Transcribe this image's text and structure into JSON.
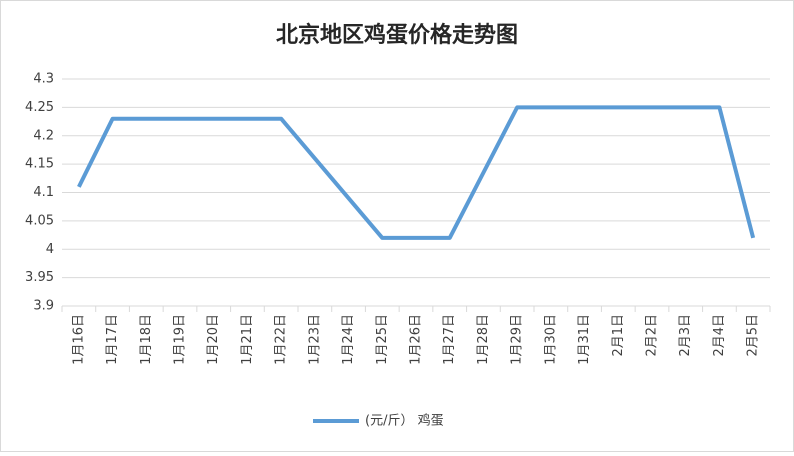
{
  "chart_data": {
    "type": "line",
    "title": "北京地区鸡蛋价格走势图",
    "categories": [
      "1月16日",
      "1月17日",
      "1月18日",
      "1月19日",
      "1月20日",
      "1月21日",
      "1月22日",
      "1月23日",
      "1月24日",
      "1月25日",
      "1月26日",
      "1月27日",
      "1月28日",
      "1月29日",
      "1月30日",
      "1月31日",
      "2月1日",
      "2月2日",
      "2月3日",
      "2月4日",
      "2月5日"
    ],
    "series": [
      {
        "name": "(元/斤） 鸡蛋",
        "color": "#5b9bd5",
        "values": [
          4.11,
          4.23,
          4.23,
          4.23,
          4.23,
          4.23,
          4.23,
          4.16,
          4.09,
          4.02,
          4.02,
          4.02,
          4.135,
          4.25,
          4.25,
          4.25,
          4.25,
          4.25,
          4.25,
          4.25,
          4.02
        ]
      }
    ],
    "ylim": [
      3.9,
      4.3
    ],
    "yticks": [
      3.9,
      3.95,
      4,
      4.05,
      4.1,
      4.15,
      4.2,
      4.25,
      4.3
    ],
    "grid": true,
    "legend": "bottom"
  }
}
